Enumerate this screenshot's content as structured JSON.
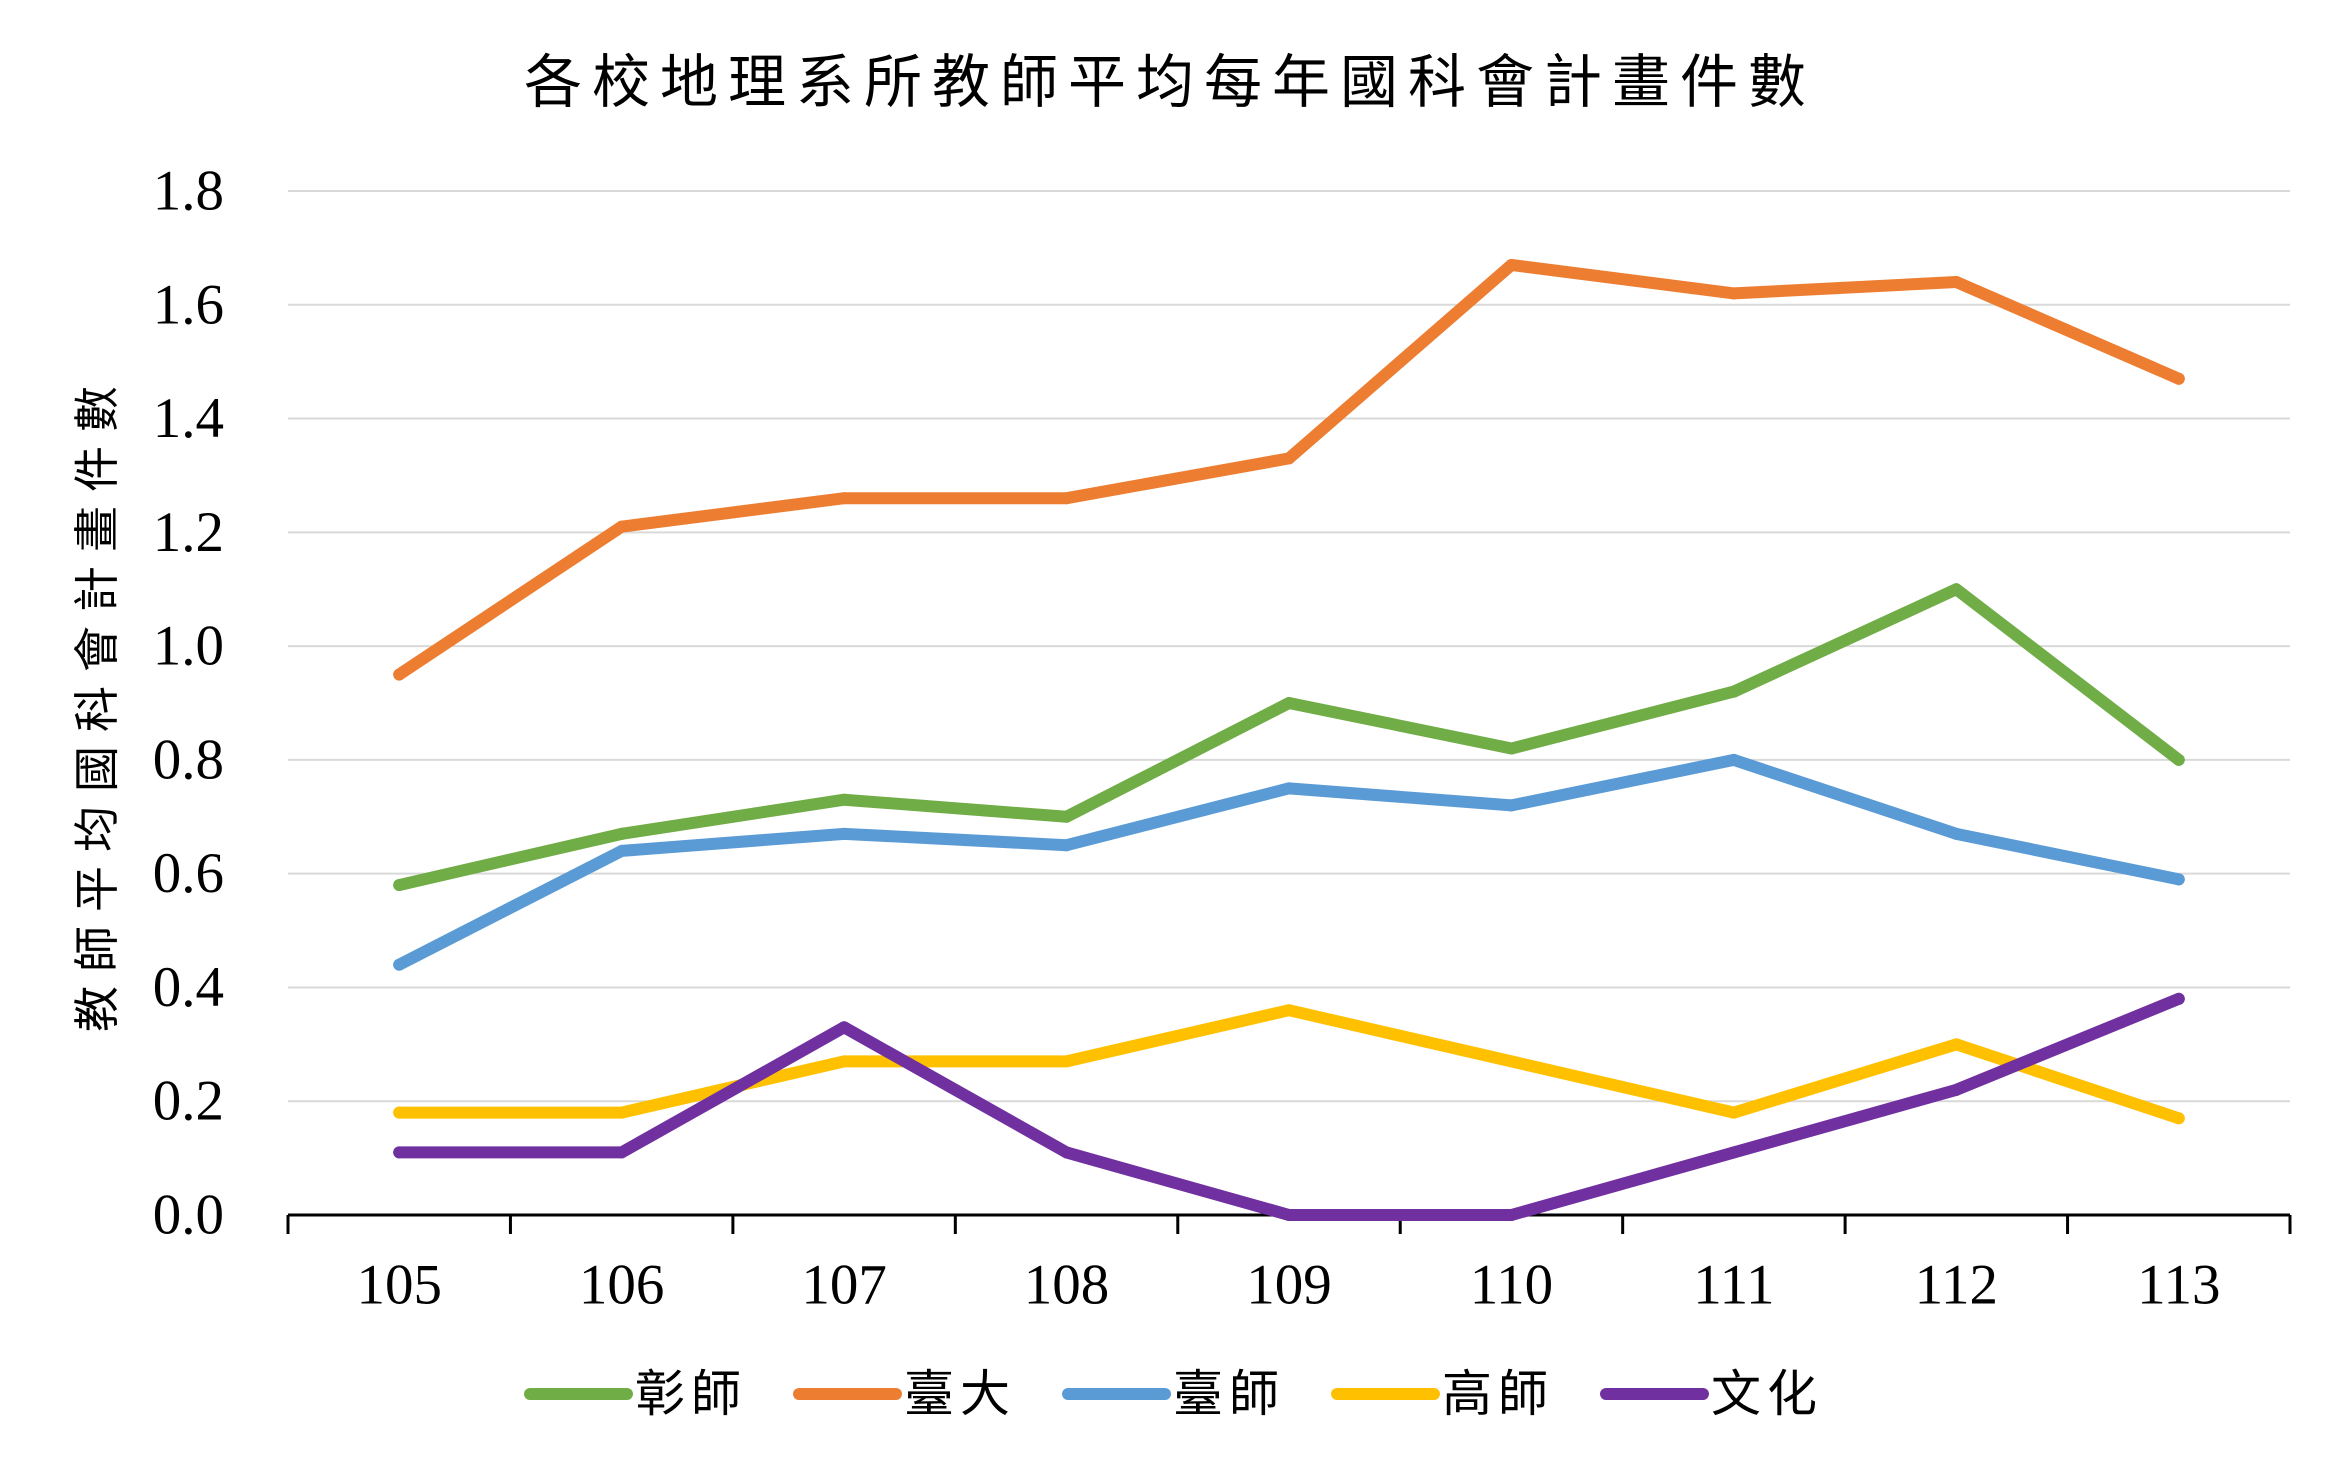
{
  "chart_data": {
    "type": "line",
    "title": "各校地理系所教師平均每年國科會計畫件數",
    "xlabel": "",
    "ylabel": "教師平均國科會計畫件數",
    "categories": [
      "105",
      "106",
      "107",
      "108",
      "109",
      "110",
      "111",
      "112",
      "113"
    ],
    "ylim": [
      0,
      1.8
    ],
    "yticks": [
      "0.0",
      "0.2",
      "0.4",
      "0.6",
      "0.8",
      "1.0",
      "1.2",
      "1.4",
      "1.6",
      "1.8"
    ],
    "grid": true,
    "legend": "bottom",
    "series": [
      {
        "name": "彰師",
        "color": "#70AD47",
        "values": [
          0.58,
          0.67,
          0.73,
          0.7,
          0.9,
          0.82,
          0.92,
          1.1,
          0.8
        ]
      },
      {
        "name": "臺大",
        "color": "#ED7D31",
        "values": [
          0.95,
          1.21,
          1.26,
          1.26,
          1.33,
          1.67,
          1.62,
          1.64,
          1.47
        ]
      },
      {
        "name": "臺師",
        "color": "#5B9BD5",
        "values": [
          0.44,
          0.64,
          0.67,
          0.65,
          0.75,
          0.72,
          0.8,
          0.67,
          0.59
        ]
      },
      {
        "name": "高師",
        "color": "#FFC000",
        "values": [
          0.18,
          0.18,
          0.27,
          0.27,
          0.36,
          0.27,
          0.18,
          0.3,
          0.17
        ]
      },
      {
        "name": "文化",
        "color": "#7030A0",
        "values": [
          0.11,
          0.11,
          0.33,
          0.11,
          0.0,
          0.0,
          0.11,
          0.22,
          0.38
        ]
      }
    ]
  }
}
